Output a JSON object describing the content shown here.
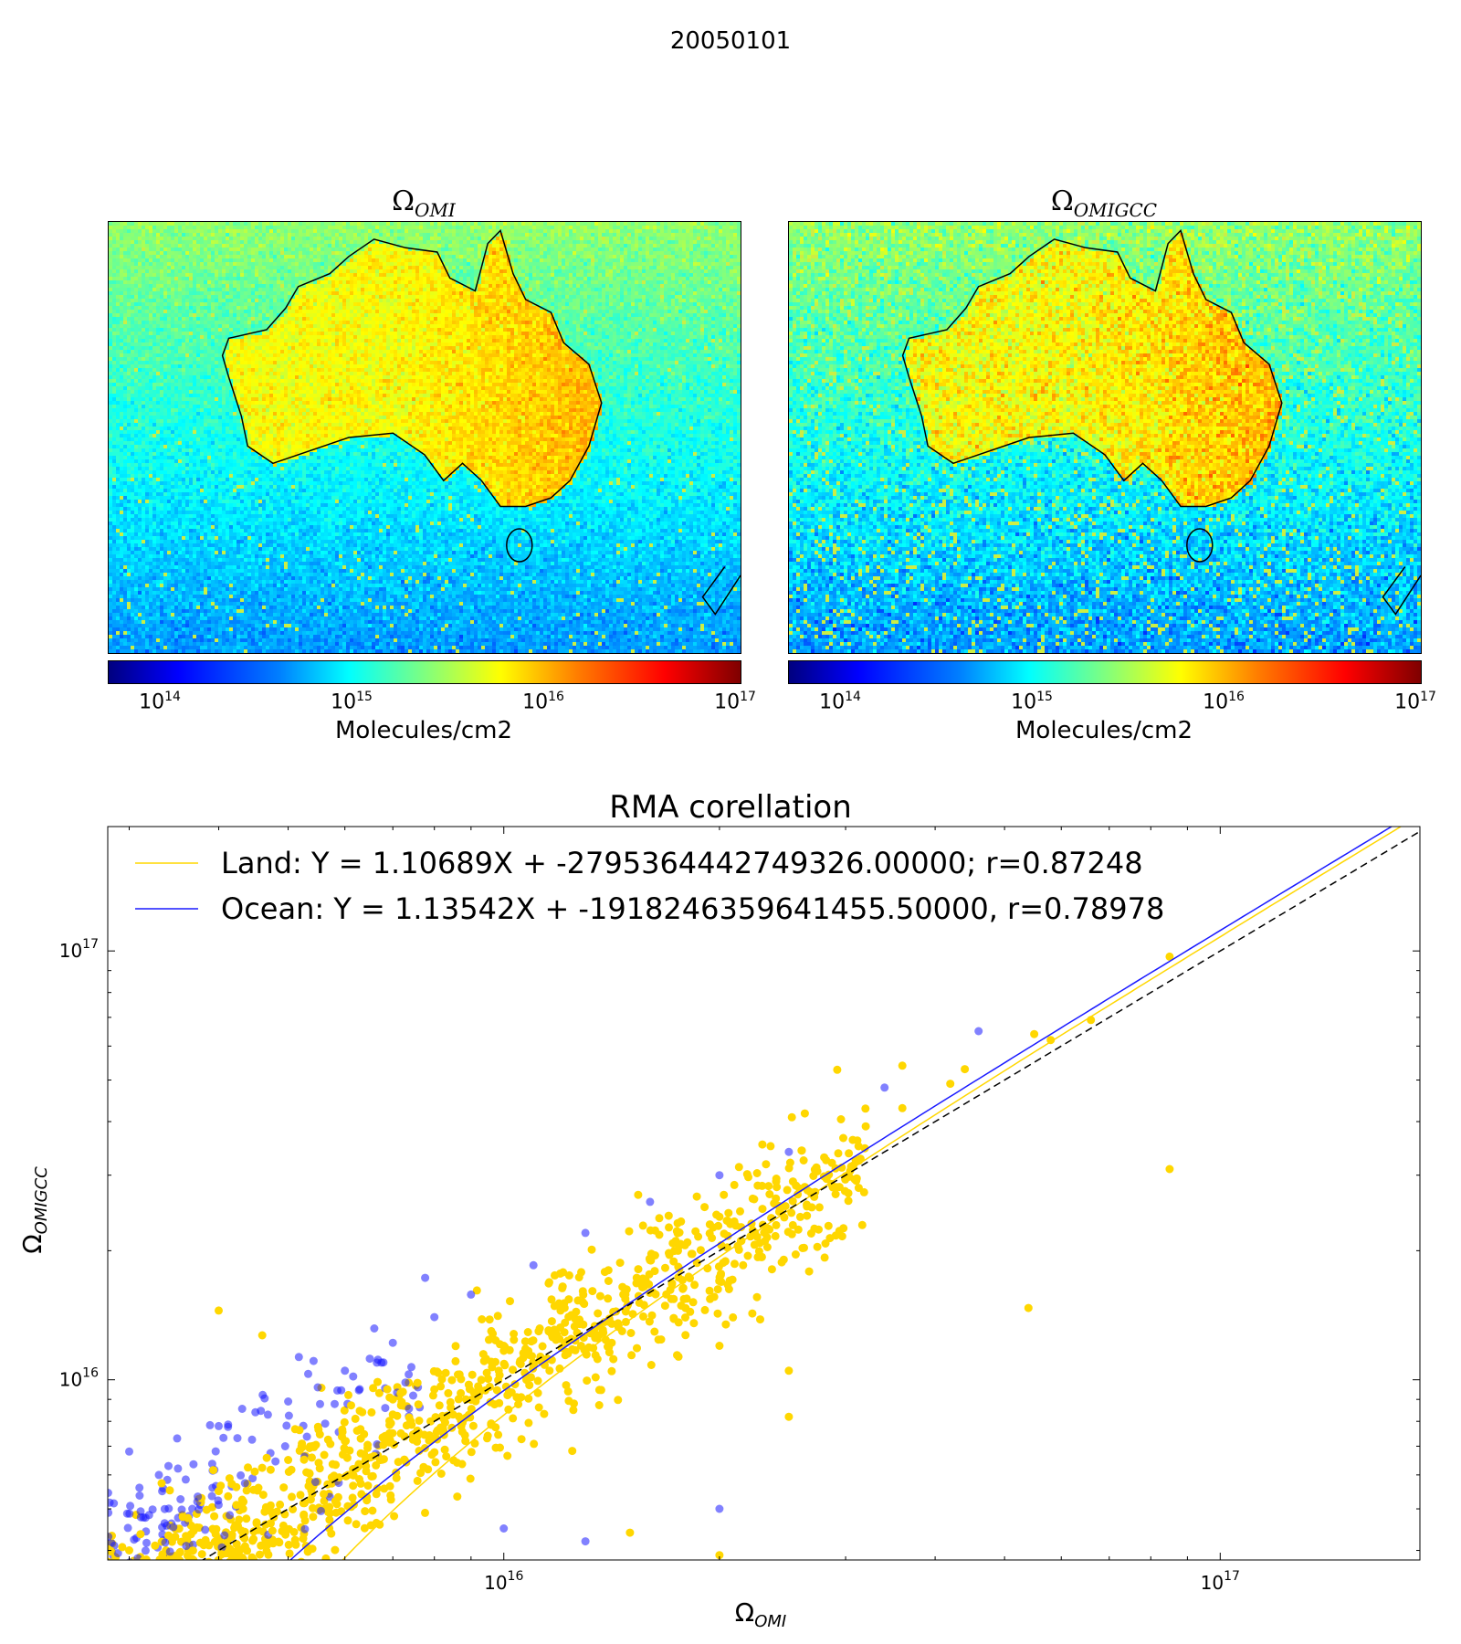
{
  "figure": {
    "suptitle": "20050101",
    "panels": [
      {
        "title_base": "Ω",
        "title_sub": "OMI",
        "colorbar_label": "Molecules/cm2",
        "colorbar_ticks": [
          {
            "base": "10",
            "exp": "14"
          },
          {
            "base": "10",
            "exp": "15"
          },
          {
            "base": "10",
            "exp": "16"
          },
          {
            "base": "10",
            "exp": "17"
          }
        ]
      },
      {
        "title_base": "Ω",
        "title_sub": "OMIGCC",
        "colorbar_label": "Molecules/cm2",
        "colorbar_ticks": [
          {
            "base": "10",
            "exp": "14"
          },
          {
            "base": "10",
            "exp": "15"
          },
          {
            "base": "10",
            "exp": "16"
          },
          {
            "base": "10",
            "exp": "17"
          }
        ]
      }
    ]
  },
  "colors": {
    "land": "#ffd700",
    "ocean": "#1a1aff",
    "one_to_one": "#000000"
  },
  "chart_data": [
    {
      "type": "heatmap",
      "title": "ΩOMI",
      "colorbar_label": "Molecules/cm2",
      "color_scale": "log",
      "crange": [
        50000000000000.0,
        1e+17
      ],
      "colormap": "jet",
      "region": "Australia"
    },
    {
      "type": "heatmap",
      "title": "ΩOMIGCC",
      "colorbar_label": "Molecules/cm2",
      "color_scale": "log",
      "crange": [
        50000000000000.0,
        1e+17
      ],
      "colormap": "jet",
      "region": "Australia"
    },
    {
      "type": "scatter",
      "title": "RMA corellation",
      "xlabel": "ΩOMI",
      "ylabel": "ΩOMIGCC",
      "xlabel_base": "Ω",
      "xlabel_sub": "OMI",
      "ylabel_base": "Ω",
      "ylabel_sub": "OMIGCC",
      "xscale": "log",
      "yscale": "log",
      "xlim": [
        2800000000000000.0,
        1.9e+17
      ],
      "ylim": [
        3800000000000000.0,
        1.95e+17
      ],
      "xticks": [
        {
          "value": 1e+16,
          "base": "10",
          "exp": "16"
        },
        {
          "value": 1e+17,
          "base": "10",
          "exp": "17"
        }
      ],
      "yticks": [
        {
          "value": 1e+16,
          "base": "10",
          "exp": "16"
        },
        {
          "value": 1e+17,
          "base": "10",
          "exp": "17"
        }
      ],
      "legend_position": "upper-left",
      "lines": [
        {
          "name": "Land: Y = 1.10689X + -2795364442749326.00000; r=0.87248",
          "slope": 1.10689,
          "intercept": -2795364442749326.0,
          "r": 0.87248,
          "color": "#ffd700"
        },
        {
          "name": "Ocean: Y = 1.13542X + -1918246359641455.50000, r=0.78978",
          "slope": 1.13542,
          "intercept": -1918246359641455.5,
          "r": 0.78978,
          "color": "#1a1aff"
        },
        {
          "name": "",
          "slope": 1.0,
          "intercept": 0,
          "style": "dashed",
          "color": "#000000"
        }
      ],
      "series": [
        {
          "group": "ocean",
          "points": [
            [
              3000000000000000.0,
              6800000000000000.0
            ],
            [
              3300000000000000.0,
              6000000000000000.0
            ],
            [
              3100000000000000.0,
              5600000000000000.0
            ],
            [
              3500000000000000.0,
              7300000000000000.0
            ],
            [
              4000000000000000.0,
              7800000000000000.0
            ],
            [
              4500000000000000.0,
              8400000000000000.0
            ],
            [
              5000000000000000.0,
              8900000000000000.0
            ],
            [
              5500000000000000.0,
              9600000000000000.0
            ],
            [
              6000000000000000.0,
              1.05e+16
            ],
            [
              6500000000000000.0,
              1.12e+16
            ],
            [
              7000000000000000.0,
              1.22e+16
            ],
            [
              8000000000000000.0,
              1.4e+16
            ],
            [
              9000000000000000.0,
              1.58e+16
            ],
            [
              1.1e+16,
              1.85e+16
            ],
            [
              1.3e+16,
              2.2e+16
            ],
            [
              1.6e+16,
              2.6e+16
            ],
            [
              2e+16,
              3e+16
            ],
            [
              2.5e+16,
              3.4e+16
            ],
            [
              3.4e+16,
              4.8e+16
            ],
            [
              4.6e+16,
              6.5e+16
            ],
            [
              1e+16,
              4500000000000000.0
            ],
            [
              1.3e+16,
              4200000000000000.0
            ],
            [
              2e+16,
              5000000000000000.0
            ]
          ]
        },
        {
          "group": "land",
          "points": [
            [
              3000000000000000.0,
              4000000000000000.0
            ],
            [
              4000000000000000.0,
              5500000000000000.0
            ],
            [
              5000000000000000.0,
              6500000000000000.0
            ],
            [
              6000000000000000.0,
              7200000000000000.0
            ],
            [
              7000000000000000.0,
              9000000000000000.0
            ],
            [
              8000000000000000.0,
              9500000000000000.0
            ],
            [
              1e+16,
              1.2e+16
            ],
            [
              1.2e+16,
              1.45e+16
            ],
            [
              1.4e+16,
              1.7e+16
            ],
            [
              1.6e+16,
              1.9e+16
            ],
            [
              2e+16,
              2.4e+16
            ],
            [
              2.4e+16,
              2.9e+16
            ],
            [
              2.8e+16,
              3.3e+16
            ],
            [
              3.2e+16,
              3.9e+16
            ],
            [
              3.6e+16,
              4.3e+16
            ],
            [
              4.4e+16,
              5.3e+16
            ],
            [
              5.5e+16,
              6.4e+16
            ],
            [
              6.6e+16,
              6.9e+16
            ],
            [
              8.5e+16,
              9.7e+16
            ],
            [
              8.5e+16,
              3.1e+16
            ],
            [
              5.4e+16,
              1.47e+16
            ],
            [
              1.54e+16,
              2.7e+16
            ],
            [
              4000000000000000.0,
              1.45e+16
            ],
            [
              4600000000000000.0,
              1.27e+16
            ],
            [
              2e+16,
              1.2e+16
            ],
            [
              2.5e+16,
              8200000000000000.0
            ],
            [
              2.5e+16,
              1.05e+16
            ],
            [
              5.8e+16,
              6.2e+16
            ],
            [
              4.2e+16,
              4.9e+16
            ],
            [
              3.6e+16,
              5.4e+16
            ],
            [
              1.5e+16,
              4400000000000000.0
            ],
            [
              2e+16,
              3900000000000000.0
            ]
          ]
        }
      ]
    }
  ]
}
